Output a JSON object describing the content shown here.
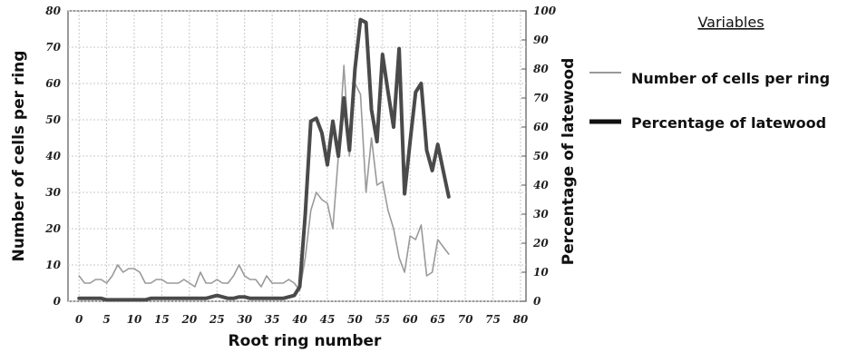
{
  "chart_data": {
    "type": "line",
    "xlabel": "Root ring number",
    "ylabel_left": "Number of cells per ring",
    "ylabel_right": "Percentage of latewood",
    "xlim": [
      -2,
      81
    ],
    "ylim_left": [
      0,
      80
    ],
    "ylim_right": [
      0,
      100
    ],
    "x_ticks": [
      "0",
      "5",
      "10",
      "15",
      "20",
      "25",
      "30",
      "35",
      "40",
      "45",
      "50",
      "55",
      "60",
      "65",
      "70",
      "75",
      "80"
    ],
    "y_ticks_left": [
      "0",
      "10",
      "20",
      "30",
      "40",
      "50",
      "60",
      "70",
      "80"
    ],
    "y_ticks_right": [
      "0",
      "10",
      "20",
      "30",
      "40",
      "50",
      "60",
      "70",
      "80",
      "90",
      "100"
    ],
    "grid": true,
    "legend_title": "Variables",
    "series": [
      {
        "name": "Number of cells per ring",
        "axis": "left",
        "color": "#9a9a9a",
        "x": [
          0,
          1,
          2,
          3,
          4,
          5,
          6,
          7,
          8,
          9,
          10,
          11,
          12,
          13,
          14,
          15,
          16,
          17,
          18,
          19,
          20,
          21,
          22,
          23,
          24,
          25,
          26,
          27,
          28,
          29,
          30,
          31,
          32,
          33,
          34,
          35,
          36,
          37,
          38,
          39,
          40,
          41,
          42,
          43,
          44,
          45,
          46,
          47,
          48,
          49,
          50,
          51,
          52,
          53,
          54,
          55,
          56,
          57,
          58,
          59,
          60,
          61,
          62,
          63,
          64,
          65,
          66,
          67
        ],
        "values": [
          7,
          5,
          5,
          6,
          6,
          5,
          7,
          10,
          8,
          9,
          9,
          8,
          5,
          5,
          6,
          6,
          5,
          5,
          5,
          6,
          5,
          4,
          8,
          5,
          5,
          6,
          5,
          5,
          7,
          10,
          7,
          6,
          6,
          4,
          7,
          5,
          5,
          5,
          6,
          5,
          3,
          12,
          25,
          30,
          28,
          27,
          20,
          40,
          65,
          40,
          60,
          57,
          30,
          45,
          32,
          33,
          25,
          20,
          12,
          8,
          18,
          17,
          21,
          7,
          8,
          17,
          15,
          13
        ]
      },
      {
        "name": "Percentage of latewood",
        "axis": "right",
        "color": "#4a4a4a",
        "x": [
          0,
          1,
          2,
          3,
          4,
          5,
          6,
          7,
          8,
          9,
          10,
          11,
          12,
          13,
          14,
          15,
          16,
          17,
          18,
          19,
          20,
          21,
          22,
          23,
          24,
          25,
          26,
          27,
          28,
          29,
          30,
          31,
          32,
          33,
          34,
          35,
          36,
          37,
          38,
          39,
          40,
          41,
          42,
          43,
          44,
          45,
          46,
          47,
          48,
          49,
          50,
          51,
          52,
          53,
          54,
          55,
          56,
          57,
          58,
          59,
          60,
          61,
          62,
          63,
          64,
          65,
          66,
          67
        ],
        "values": [
          1,
          1,
          1,
          1,
          1,
          0.5,
          0.5,
          0.5,
          0.5,
          0.5,
          0.5,
          0.5,
          0.5,
          1,
          1,
          1,
          1,
          1,
          1,
          1,
          1,
          1,
          1,
          1,
          1.5,
          2,
          1.5,
          1,
          1,
          1.5,
          1.5,
          1,
          1,
          1,
          1,
          1,
          1,
          1,
          1.5,
          2,
          5,
          30,
          62,
          63,
          58,
          47,
          62,
          50,
          70,
          52,
          80,
          97,
          96,
          66,
          55,
          85,
          72,
          60,
          87,
          37,
          55,
          72,
          75,
          52,
          45,
          54,
          45,
          36
        ]
      }
    ]
  }
}
